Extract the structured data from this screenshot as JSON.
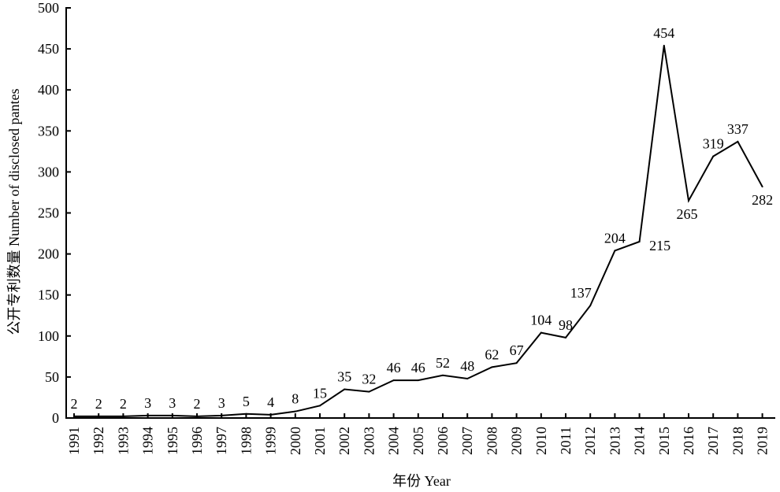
{
  "chart_data": {
    "type": "line",
    "x": [
      1991,
      1992,
      1993,
      1994,
      1995,
      1996,
      1997,
      1998,
      1999,
      2000,
      2001,
      2002,
      2003,
      2004,
      2005,
      2006,
      2007,
      2008,
      2009,
      2010,
      2011,
      2012,
      2013,
      2014,
      2015,
      2016,
      2017,
      2018,
      2019
    ],
    "series": [
      {
        "values": [
          2,
          2,
          2,
          3,
          3,
          2,
          3,
          5,
          4,
          8,
          15,
          35,
          32,
          46,
          46,
          52,
          48,
          62,
          67,
          104,
          98,
          137,
          204,
          215,
          454,
          265,
          319,
          337,
          282
        ]
      }
    ],
    "xlabel": "年份 Year",
    "ylabel": "公开专利数量 Number of disclosed pantes",
    "ylim": [
      0,
      500
    ],
    "yticks": [
      0,
      50,
      100,
      150,
      200,
      250,
      300,
      350,
      400,
      450,
      500
    ],
    "data_labels": true,
    "grid": false,
    "legend": false,
    "line_color": "#000000"
  }
}
